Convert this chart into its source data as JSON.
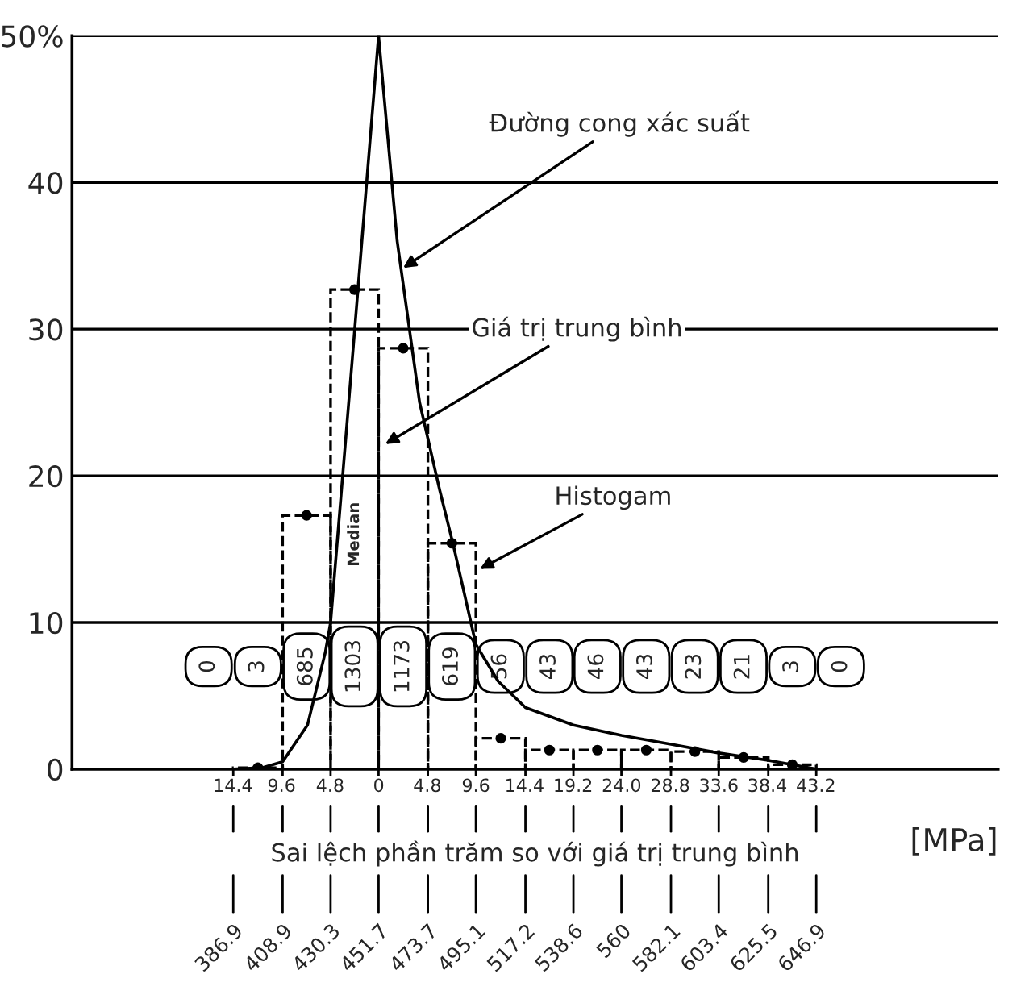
{
  "chart_data": {
    "type": "histogram",
    "bins": [
      386.9,
      408.9,
      430.3,
      451.7,
      473.7,
      495.1,
      517.2,
      538.6,
      560,
      582.1,
      603.4,
      625.5,
      646.9
    ],
    "values": [
      0.1,
      17.3,
      32.7,
      28.7,
      15.4,
      2.1,
      1.3,
      1.3,
      1.3,
      1.2,
      0.8,
      0.3
    ],
    "color": "#000000",
    "line_style": "dashed",
    "series": [
      {
        "type": "line",
        "color": "#000000",
        "line_style": "solid",
        "marker": "none",
        "x": [
          386.9,
          400,
          408.9,
          420,
          428,
          430.3,
          440,
          451.7,
          460,
          470,
          479,
          485,
          495.1,
          505,
          517.2,
          538.6,
          560,
          582.1,
          603.4,
          625.5,
          646.9
        ],
        "values": [
          0,
          0.1,
          0.5,
          3,
          8,
          10,
          28,
          50,
          36,
          25,
          19,
          15.3,
          8.5,
          6,
          4.2,
          3.0,
          2.3,
          1.7,
          1.1,
          0.6,
          0
        ]
      },
      {
        "type": "scatter",
        "color": "#000000",
        "marker": "circle",
        "x": [
          397.9,
          419.6,
          441,
          462.7,
          484.4,
          506.2,
          527.9,
          549.3,
          571.1,
          592.8,
          614.5,
          636.2
        ],
        "values": [
          0.1,
          17.3,
          32.7,
          28.7,
          15.4,
          2.1,
          1.3,
          1.3,
          1.3,
          1.2,
          0.8,
          0.3
        ]
      }
    ],
    "xlabel": "[MPa]",
    "x2label": "Sai lệch phần trăm so với giá trị trung bình",
    "xlim": [
      315,
      728
    ],
    "xticks": [
      386.9,
      408.9,
      430.3,
      451.7,
      473.7,
      495.1,
      517.2,
      538.6,
      560,
      582.1,
      603.4,
      625.5,
      646.9
    ],
    "x2lim": [
      -30.3,
      61.2
    ],
    "x2ticks": [
      {
        "value": -14.4,
        "label": "14.4"
      },
      {
        "value": -9.6,
        "label": "9.6"
      },
      {
        "value": -4.8,
        "label": "4.8"
      },
      0,
      4.8,
      9.6,
      14.4,
      19.2,
      {
        "value": 24.0,
        "label": "24.0"
      },
      28.8,
      33.6,
      38.4,
      43.2
    ],
    "ylim": [
      0,
      50
    ],
    "yticks": [
      0,
      10,
      20,
      30,
      40,
      {
        "value": 50,
        "label": "50%"
      }
    ],
    "grid": "y",
    "annotations": [
      {
        "text": "Đường cong xác suất",
        "x": 461,
        "y": 34
      },
      {
        "text": "Giá trị trung bình",
        "x": 453,
        "y": 22
      },
      {
        "text": "Histogam",
        "x": 495.1,
        "y": 13.5
      },
      "Median",
      "0",
      "3",
      "685",
      "1303",
      "1173",
      "619",
      "56",
      "43",
      "46",
      "43",
      "23",
      "21",
      "3",
      "0"
    ]
  }
}
